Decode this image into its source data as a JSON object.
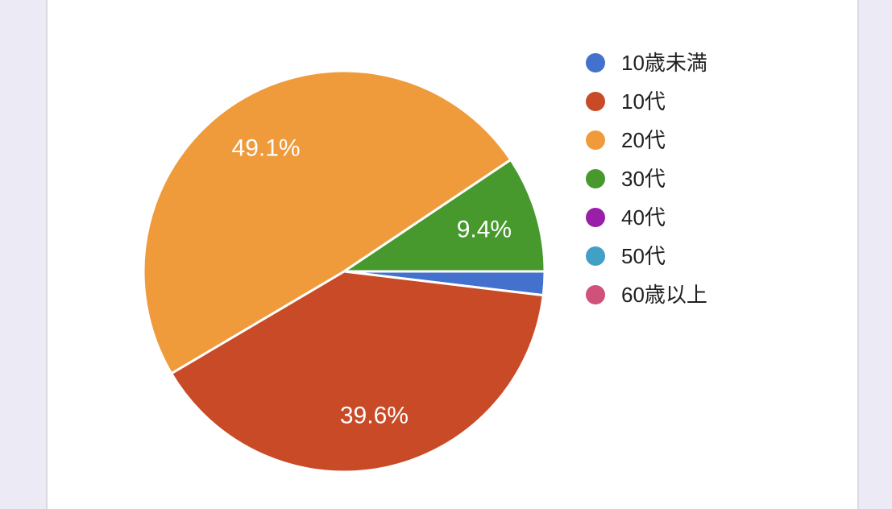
{
  "page": {
    "background_color": "#eceaf4",
    "card_background_color": "#ffffff",
    "card_border_color": "#d9dade"
  },
  "chart_data": {
    "type": "pie",
    "title": "",
    "legend_position": "right",
    "start_angle_deg": 0,
    "direction": "clockwise",
    "slice_separator_color": "#ffffff",
    "slice_label_color": "#ffffff",
    "legend_text_color": "#212121",
    "slices": [
      {
        "label": "10歳未満",
        "value": 1.9,
        "display_label": "",
        "show_label": false,
        "color": "#4371cd"
      },
      {
        "label": "10代",
        "value": 39.6,
        "display_label": "39.6%",
        "show_label": true,
        "color": "#c84a27"
      },
      {
        "label": "20代",
        "value": 49.1,
        "display_label": "49.1%",
        "show_label": true,
        "color": "#ef9b3c"
      },
      {
        "label": "30代",
        "value": 9.4,
        "display_label": "9.4%",
        "show_label": true,
        "color": "#47992e"
      },
      {
        "label": "40代",
        "value": 0,
        "display_label": "",
        "show_label": false,
        "color": "#9a1fa8"
      },
      {
        "label": "50代",
        "value": 0,
        "display_label": "",
        "show_label": false,
        "color": "#429fc6"
      },
      {
        "label": "60歳以上",
        "value": 0,
        "display_label": "",
        "show_label": false,
        "color": "#cf527a"
      }
    ]
  }
}
